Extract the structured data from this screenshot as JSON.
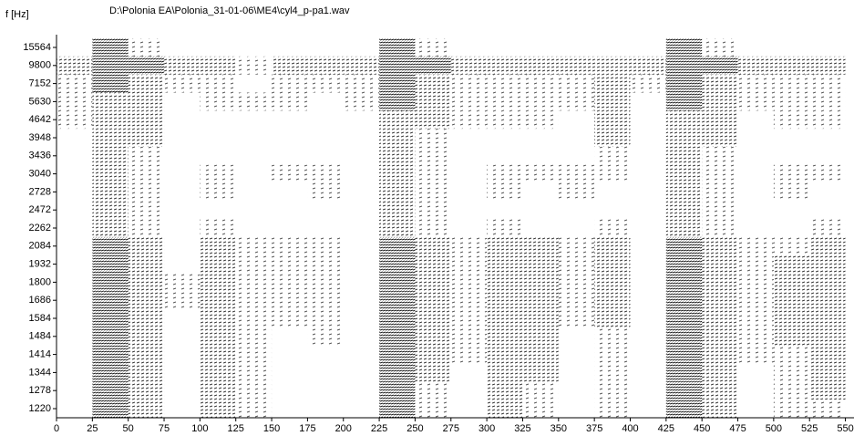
{
  "chart_data": {
    "type": "spectrogram",
    "title": "D:\\Polonia EA\\Polonia_31-01-06\\ME4\\cyl4_p-pa1.wav",
    "y_label": "f [Hz]",
    "y_categories": [
      "15564",
      "9800",
      "7152",
      "5630",
      "4642",
      "3948",
      "3436",
      "3040",
      "2728",
      "2472",
      "2262",
      "2084",
      "1932",
      "1800",
      "1686",
      "1584",
      "1484",
      "1414",
      "1344",
      "1278",
      "1220"
    ],
    "x_bin_width": 25,
    "xlim": [
      0,
      556
    ],
    "xticks": [
      0,
      25,
      50,
      75,
      100,
      125,
      150,
      175,
      200,
      225,
      250,
      275,
      300,
      325,
      350,
      375,
      400,
      425,
      450,
      475,
      500,
      525,
      550
    ],
    "intensity": [
      [
        0,
        3,
        1,
        0,
        0,
        0,
        0,
        0,
        0,
        3,
        1,
        0,
        0,
        0,
        0,
        0,
        0,
        3,
        1,
        0,
        0,
        0
      ],
      [
        2,
        3,
        3,
        2,
        2,
        1,
        2,
        2,
        2,
        3,
        3,
        2,
        2,
        2,
        2,
        2,
        2,
        3,
        3,
        2,
        2,
        2
      ],
      [
        1,
        3,
        2,
        1,
        1,
        0,
        1,
        1,
        1,
        3,
        2,
        1,
        1,
        1,
        1,
        2,
        1,
        3,
        2,
        1,
        1,
        1
      ],
      [
        1,
        2,
        2,
        0,
        1,
        1,
        1,
        0,
        1,
        3,
        2,
        1,
        1,
        1,
        1,
        2,
        0,
        3,
        2,
        1,
        1,
        1
      ],
      [
        1,
        2,
        2,
        0,
        0,
        0,
        0,
        0,
        0,
        2,
        2,
        1,
        1,
        1,
        0,
        2,
        0,
        2,
        2,
        0,
        1,
        1
      ],
      [
        0,
        2,
        2,
        0,
        0,
        0,
        0,
        0,
        0,
        2,
        1,
        0,
        0,
        0,
        0,
        2,
        0,
        2,
        2,
        0,
        0,
        0
      ],
      [
        0,
        2,
        1,
        0,
        0,
        0,
        0,
        0,
        0,
        2,
        1,
        0,
        0,
        0,
        0,
        1,
        0,
        2,
        1,
        0,
        0,
        0
      ],
      [
        0,
        2,
        1,
        0,
        1,
        0,
        1,
        1,
        0,
        2,
        1,
        0,
        1,
        1,
        1,
        1,
        0,
        2,
        1,
        0,
        1,
        1
      ],
      [
        0,
        2,
        1,
        0,
        1,
        0,
        0,
        1,
        0,
        2,
        1,
        0,
        1,
        0,
        1,
        0,
        0,
        2,
        1,
        0,
        1,
        0
      ],
      [
        0,
        2,
        1,
        0,
        0,
        0,
        0,
        0,
        0,
        2,
        1,
        0,
        0,
        0,
        0,
        0,
        0,
        2,
        1,
        0,
        0,
        0
      ],
      [
        0,
        2,
        1,
        0,
        1,
        0,
        0,
        0,
        0,
        2,
        1,
        0,
        1,
        0,
        0,
        1,
        0,
        2,
        1,
        0,
        0,
        1
      ],
      [
        0,
        3,
        2,
        0,
        2,
        1,
        1,
        1,
        0,
        3,
        2,
        1,
        2,
        2,
        1,
        2,
        0,
        3,
        2,
        1,
        1,
        2
      ],
      [
        0,
        3,
        2,
        0,
        2,
        1,
        1,
        1,
        0,
        3,
        2,
        1,
        2,
        2,
        1,
        2,
        0,
        3,
        2,
        1,
        2,
        2
      ],
      [
        0,
        3,
        2,
        1,
        2,
        1,
        1,
        1,
        0,
        3,
        2,
        1,
        2,
        2,
        1,
        2,
        0,
        3,
        2,
        1,
        2,
        2
      ],
      [
        0,
        3,
        2,
        1,
        2,
        1,
        1,
        1,
        0,
        3,
        2,
        1,
        2,
        2,
        1,
        2,
        0,
        3,
        2,
        1,
        2,
        2
      ],
      [
        0,
        3,
        2,
        0,
        2,
        1,
        1,
        1,
        0,
        3,
        2,
        1,
        2,
        2,
        1,
        2,
        0,
        3,
        2,
        1,
        2,
        2
      ],
      [
        0,
        3,
        2,
        0,
        2,
        1,
        0,
        1,
        0,
        3,
        2,
        1,
        2,
        2,
        0,
        1,
        0,
        3,
        2,
        1,
        2,
        2
      ],
      [
        0,
        3,
        2,
        0,
        2,
        1,
        0,
        0,
        0,
        3,
        2,
        1,
        2,
        2,
        0,
        1,
        0,
        3,
        2,
        1,
        1,
        2
      ],
      [
        0,
        3,
        2,
        0,
        2,
        1,
        0,
        0,
        0,
        3,
        2,
        0,
        2,
        2,
        0,
        1,
        0,
        3,
        2,
        0,
        1,
        2
      ],
      [
        0,
        3,
        2,
        0,
        2,
        1,
        0,
        0,
        0,
        3,
        1,
        0,
        2,
        1,
        0,
        1,
        0,
        3,
        2,
        0,
        1,
        2
      ],
      [
        0,
        3,
        2,
        0,
        2,
        1,
        0,
        0,
        0,
        3,
        1,
        0,
        2,
        1,
        0,
        1,
        0,
        3,
        2,
        0,
        1,
        1
      ]
    ],
    "color": "#222222"
  }
}
